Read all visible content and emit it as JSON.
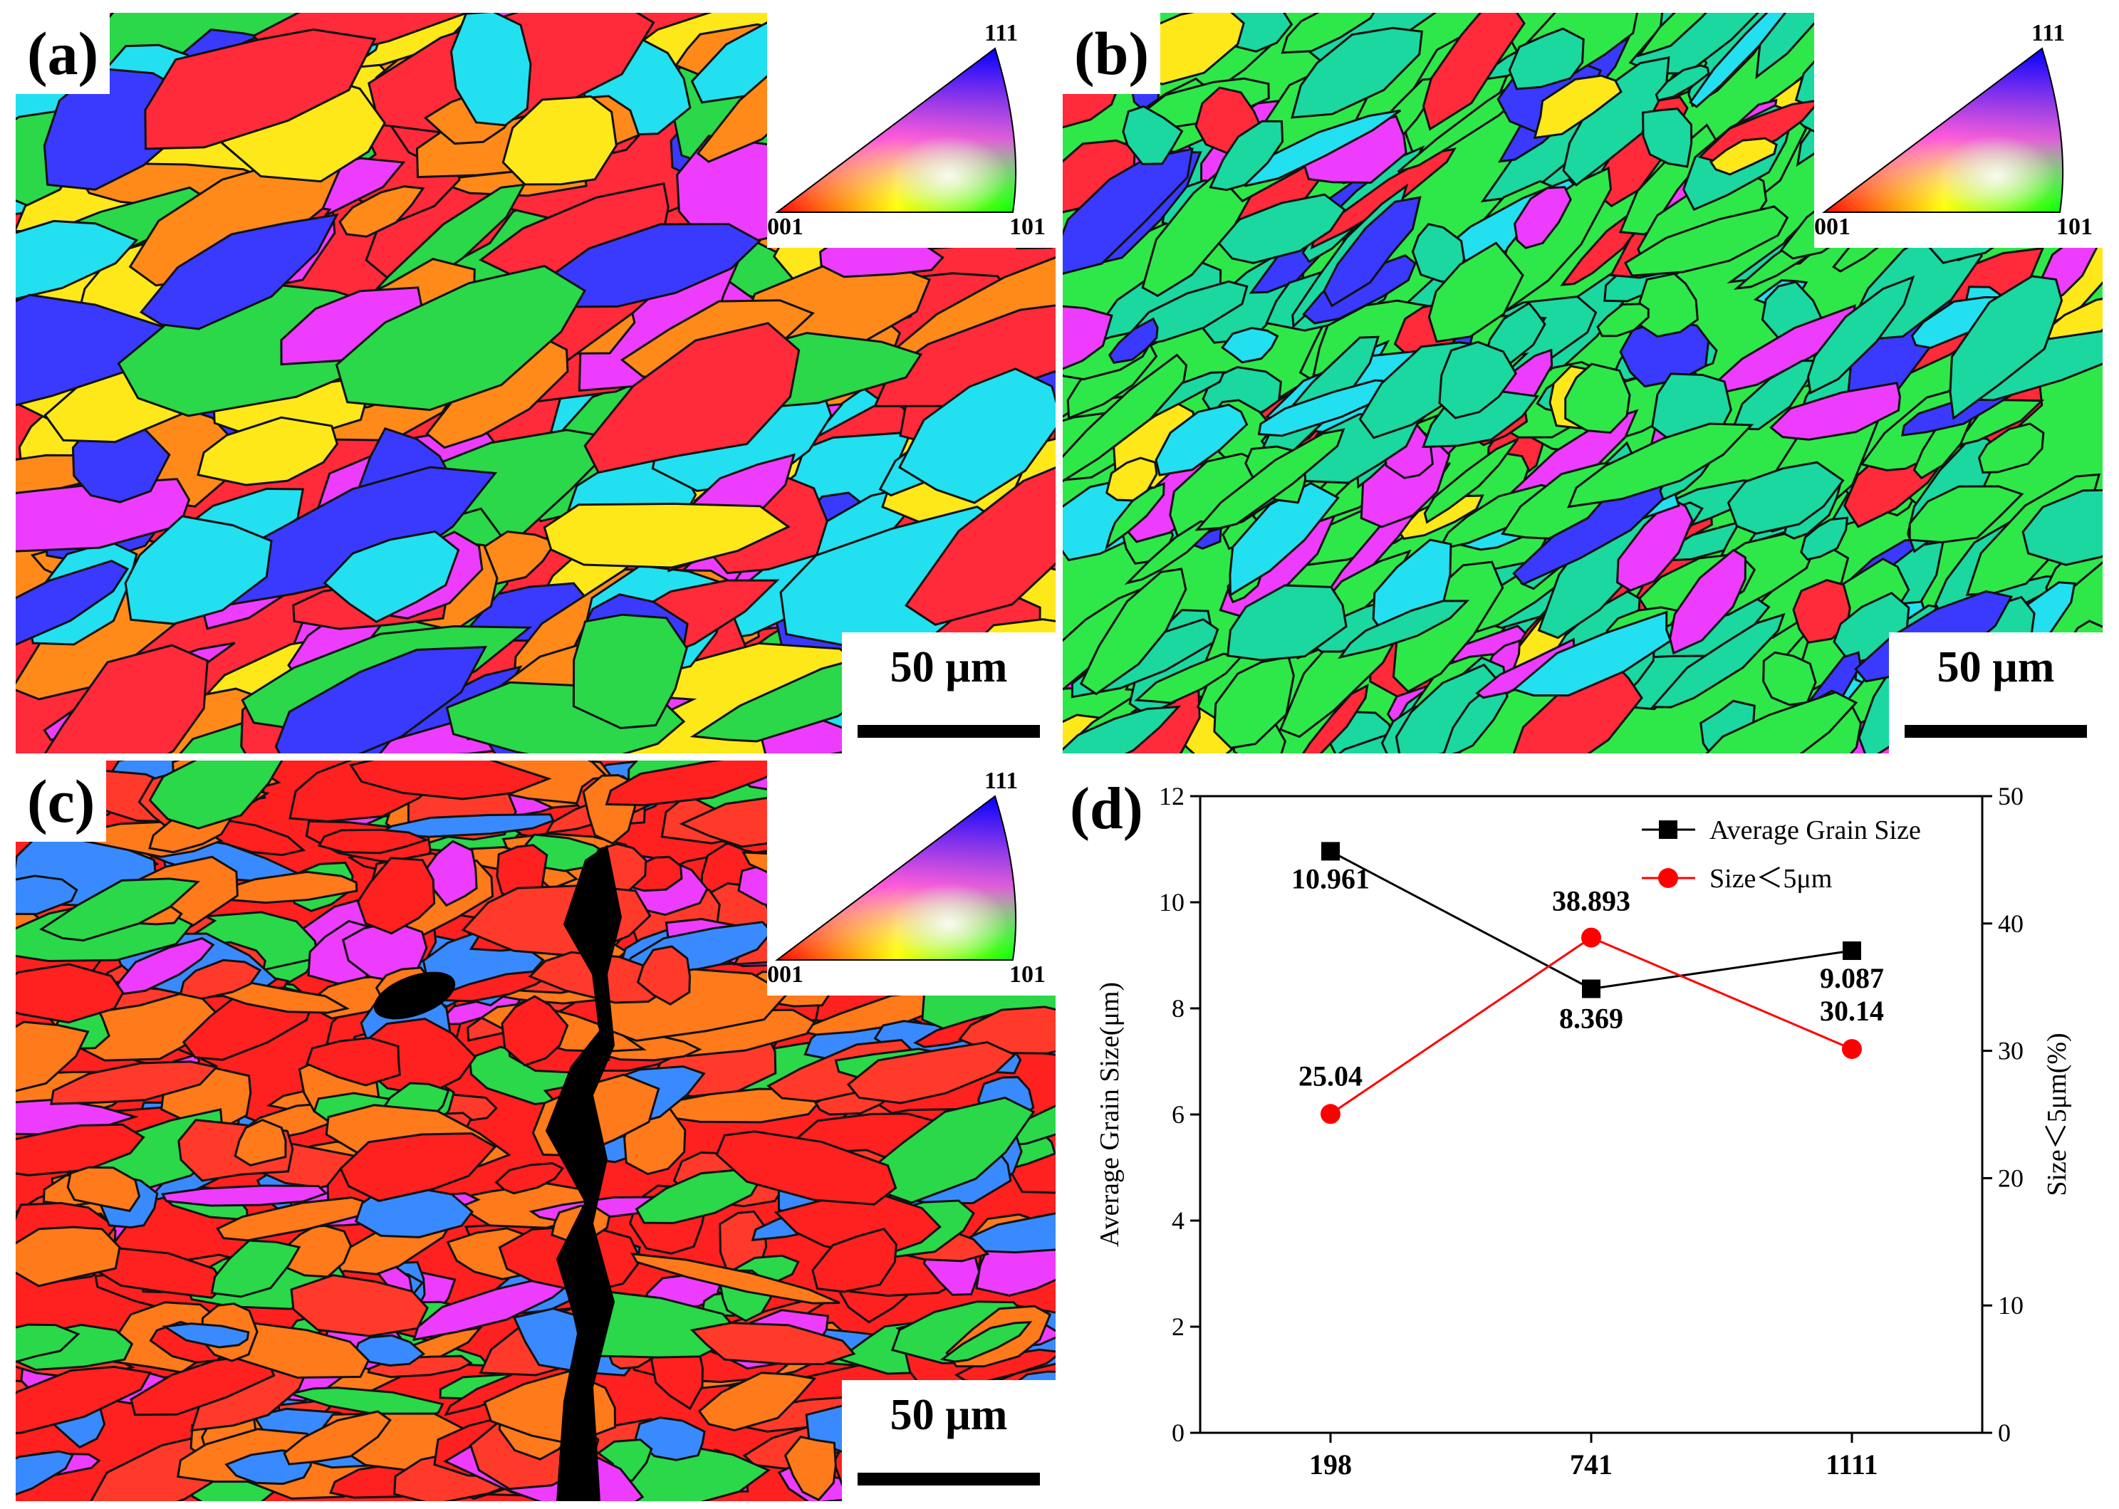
{
  "figure": {
    "panels": [
      {
        "label": "(a)",
        "scale_bar": "50 µm",
        "ipf_key": {
          "corner_top": "111",
          "corner_left": "001",
          "corner_right": "101"
        },
        "dominant_colors": [
          "#ff2a3a",
          "#ff8a1a",
          "#ee3cff",
          "#3a3aff",
          "#2ad84a",
          "#ffe81a",
          "#22e0f0"
        ]
      },
      {
        "label": "(b)",
        "scale_bar": "50 µm",
        "ipf_key": {
          "corner_top": "111",
          "corner_left": "001",
          "corner_right": "101"
        },
        "dominant_colors": [
          "#2ee84a",
          "#1ad8a0",
          "#ee3cff",
          "#3a3aff",
          "#ff2a3a",
          "#ffe81a",
          "#22e0f0"
        ]
      },
      {
        "label": "(c)",
        "scale_bar": "50 µm",
        "ipf_key": {
          "corner_top": "111",
          "corner_left": "001",
          "corner_right": "101"
        },
        "dominant_colors": [
          "#ff2020",
          "#ff3a2a",
          "#ff7a1a",
          "#2ad84a",
          "#3a8aff",
          "#ee3cff",
          "#000000"
        ]
      }
    ]
  },
  "chart_label": "(d)",
  "chart_data": {
    "type": "line",
    "categories": [
      "198",
      "741",
      "1111"
    ],
    "ylabel": "Average Grain Size(μm)",
    "ylabel_right": "Size＜5μm(%)",
    "ylim": [
      0,
      12
    ],
    "ylim_right": [
      0,
      50
    ],
    "yticks": [
      "0",
      "2",
      "4",
      "6",
      "8",
      "10",
      "12"
    ],
    "yticks_right": [
      "0",
      "10",
      "20",
      "30",
      "40",
      "50"
    ],
    "series": [
      {
        "name": "Average Grain Size",
        "axis": "left",
        "color": "#000000",
        "marker": "square",
        "values": [
          10.961,
          8.369,
          9.087
        ],
        "labels": [
          "10.961",
          "8.369",
          "9.087"
        ]
      },
      {
        "name": "Size＜5μm",
        "axis": "right",
        "color": "#ff0000",
        "marker": "circle",
        "values": [
          25.04,
          38.893,
          30.14
        ],
        "labels": [
          "25.04",
          "38.893",
          "30.14"
        ]
      }
    ],
    "legend": "top-right"
  }
}
